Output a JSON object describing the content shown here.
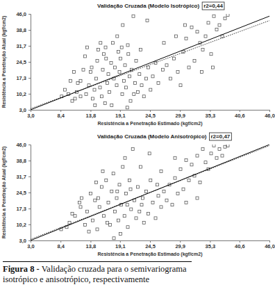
{
  "chart_data": [
    {
      "type": "scatter",
      "title": "Validação Cruzada (Modelo Isotrópico)",
      "subtitle": "r2=0,44",
      "x_label": "Resistência a Penetração Estimado (kgf/cm2)",
      "y_label": "Resistência a Penetração Atual (kgf/cm2)",
      "xlim": [
        3,
        46
      ],
      "ylim": [
        3,
        46
      ],
      "xticks": [
        {
          "value": 3,
          "label": "3,0"
        },
        {
          "value": 8.4,
          "label": "8,4"
        },
        {
          "value": 13.8,
          "label": "13,8"
        },
        {
          "value": 19.1,
          "label": "19,1"
        },
        {
          "value": 24.5,
          "label": "24,5"
        },
        {
          "value": 29.9,
          "label": "29,9"
        },
        {
          "value": 35.3,
          "label": "35,3"
        },
        {
          "value": 40.6,
          "label": "40,6"
        },
        {
          "value": 46,
          "label": "46,0"
        }
      ],
      "yticks": [
        {
          "value": 3,
          "label": "3,0"
        },
        {
          "value": 10.2,
          "label": "10,2"
        },
        {
          "value": 17.3,
          "label": "17,3"
        },
        {
          "value": 24.5,
          "label": "24,5"
        },
        {
          "value": 31.7,
          "label": "31,7"
        },
        {
          "value": 38.8,
          "label": "38,8"
        },
        {
          "value": 46,
          "label": "46,0"
        }
      ],
      "grid": false,
      "series": [
        {
          "type": "scatter",
          "marker": "square",
          "color": "#444444",
          "x": [
            10.5,
            11,
            11.5,
            12,
            12.5,
            12,
            13,
            13.5,
            13.8,
            14,
            14.2,
            14.5,
            14.8,
            15,
            15.2,
            15.5,
            15.8,
            16,
            16.2,
            16.5,
            16.8,
            17,
            17.2,
            17.5,
            17.8,
            18,
            18.2,
            18.5,
            18.8,
            19,
            19.2,
            19.5,
            19.8,
            20,
            20.2,
            20.5,
            20.8,
            21,
            21.2,
            21.5,
            21.8,
            22,
            22.3,
            22.6,
            23,
            23.4,
            23.8,
            24.2,
            24.6,
            25,
            8.6,
            9.2,
            9.8,
            10.2,
            10.8,
            11.3,
            12.8,
            13.2,
            15.6,
            16.4,
            17.6,
            18.6,
            19.6,
            20.6,
            21.6,
            22.8,
            25.5,
            26,
            26.8,
            27.5,
            28.2,
            28.8,
            29.5,
            30,
            30.5,
            31,
            31.5,
            32,
            32.5,
            33,
            33.5,
            34,
            34.5,
            35,
            35.5,
            36,
            36.5,
            37,
            37.5,
            38,
            38.5,
            35.8,
            33.8,
            30.8,
            29.2,
            27,
            24,
            14.6,
            16.6,
            19.4,
            20.4
          ],
          "values": [
            7,
            8,
            15,
            16,
            21,
            9,
            10,
            14,
            20,
            22,
            8,
            12,
            17,
            25,
            30,
            13,
            9,
            21,
            28,
            31,
            15,
            19,
            11,
            24,
            33,
            17,
            22,
            14,
            29,
            20,
            26,
            10,
            16,
            23,
            13,
            32,
            18,
            7,
            21,
            45,
            15,
            25,
            11,
            19,
            14,
            9,
            17,
            22,
            12,
            18,
            9,
            12,
            10,
            16,
            20,
            11,
            27,
            31,
            33,
            6,
            5,
            36,
            41,
            28,
            10,
            30,
            24,
            15,
            21,
            23,
            17,
            26,
            20,
            14,
            29,
            35,
            22,
            40,
            25,
            38,
            33,
            30,
            36,
            42,
            28,
            45,
            39,
            41,
            36,
            44,
            45.5,
            22,
            20,
            41,
            36,
            33,
            43,
            5,
            26,
            31,
            4
          ]
        },
        {
          "type": "line",
          "line_style": "solid",
          "color": "#000000",
          "x": [
            3,
            46
          ],
          "values": [
            3,
            45
          ]
        },
        {
          "type": "line",
          "line_style": "dotted",
          "color": "#000000",
          "x": [
            3,
            46
          ],
          "values": [
            3.5,
            43
          ]
        }
      ]
    },
    {
      "type": "scatter",
      "title": "Validação Cruzada (Modelo Anisotrópico)",
      "subtitle": "r2=0,47",
      "x_label": "Resistência a Penetração Estimado (kgf/cm2)",
      "y_label": "Resistência a Penetração Atual (kgf/cm2)",
      "xlim": [
        3,
        46
      ],
      "ylim": [
        3,
        46
      ],
      "xticks": [
        {
          "value": 3,
          "label": "3,0"
        },
        {
          "value": 8.4,
          "label": "8,4"
        },
        {
          "value": 13.8,
          "label": "13,8"
        },
        {
          "value": 19.1,
          "label": "19,1"
        },
        {
          "value": 24.5,
          "label": "24,5"
        },
        {
          "value": 29.9,
          "label": "29,9"
        },
        {
          "value": 35.3,
          "label": "35,3"
        },
        {
          "value": 40.6,
          "label": "40,6"
        },
        {
          "value": 46,
          "label": "46,0"
        }
      ],
      "yticks": [
        {
          "value": 3,
          "label": "3,0"
        },
        {
          "value": 10.2,
          "label": "10,2"
        },
        {
          "value": 17.3,
          "label": "17,3"
        },
        {
          "value": 24.5,
          "label": "24,5"
        },
        {
          "value": 31.7,
          "label": "31,7"
        },
        {
          "value": 38.8,
          "label": "38,8"
        },
        {
          "value": 46,
          "label": "46,0"
        }
      ],
      "grid": false,
      "series": [
        {
          "type": "scatter",
          "marker": "square",
          "color": "#444444",
          "x": [
            8.5,
            9.5,
            10,
            11,
            11.8,
            12.2,
            12.8,
            13.2,
            13.8,
            14.2,
            14.6,
            15,
            15.4,
            15.8,
            16.2,
            16.6,
            17,
            17.3,
            17.6,
            17.9,
            18.2,
            18.5,
            18.8,
            19,
            19.3,
            19.6,
            19.9,
            20.2,
            20.5,
            20.8,
            21.1,
            21.4,
            21.7,
            22,
            22.3,
            22.6,
            23,
            23.4,
            23.8,
            24.2,
            24.6,
            25,
            25.5,
            26,
            26.5,
            27,
            27.5,
            28,
            28.5,
            29,
            29.5,
            30,
            30.5,
            31,
            31.5,
            32,
            32.5,
            33,
            33.5,
            34,
            34.5,
            35,
            35.5,
            36,
            36.5,
            37,
            37.5,
            38,
            38.5,
            33,
            31,
            29,
            26.5,
            24.4,
            22.8,
            20,
            19.2,
            18,
            16,
            14.8,
            13.5,
            12,
            10.5,
            16.8,
            21,
            23.2,
            25.8,
            20.4,
            18.6,
            15.2
          ],
          "values": [
            8,
            9,
            11,
            14,
            20,
            22,
            10,
            16,
            24,
            12,
            21,
            8,
            18,
            27,
            14,
            30,
            20,
            10,
            25,
            33,
            16,
            22,
            12,
            28,
            19,
            36,
            14,
            24,
            9,
            30,
            17,
            44,
            21,
            13,
            27,
            16,
            19,
            11,
            25,
            15,
            30,
            20,
            13,
            23,
            18,
            25,
            21,
            28,
            19,
            31,
            24,
            35,
            26,
            39,
            30,
            37,
            32,
            41,
            29,
            44,
            38,
            35,
            42,
            45.5,
            40,
            44,
            41,
            45,
            45.5,
            22,
            20,
            40,
            34,
            42,
            36,
            40,
            6,
            4,
            34,
            29,
            7,
            18,
            15,
            11,
            26,
            22,
            28,
            19,
            25,
            22
          ]
        },
        {
          "type": "line",
          "line_style": "solid",
          "color": "#000000",
          "x": [
            3,
            46
          ],
          "values": [
            3,
            46
          ]
        },
        {
          "type": "line",
          "line_style": "dotted",
          "color": "#000000",
          "x": [
            3,
            46
          ],
          "values": [
            3.5,
            45.5
          ]
        }
      ]
    }
  ],
  "caption": {
    "label": "Figura 8 -",
    "text": "Validação cruzada para o semivariograma isotrópico e anisotrópico,  respectivamente"
  }
}
